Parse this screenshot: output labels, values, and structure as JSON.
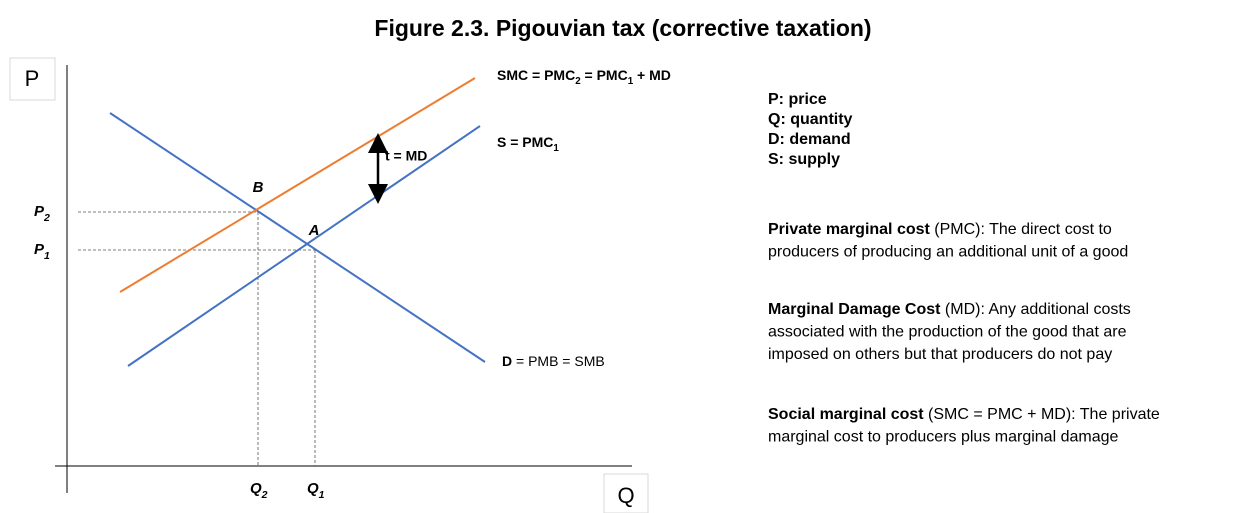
{
  "title": "Figure 2.3. Pigouvian tax (corrective taxation)",
  "axes": {
    "y_label": "P",
    "x_label": "Q"
  },
  "curves": {
    "smc": [
      "SMC = PMC",
      "2",
      " = PMC",
      "1",
      " + MD"
    ],
    "s": [
      "S = PMC",
      "1"
    ],
    "d": [
      "D",
      " = PMB = SMB"
    ]
  },
  "points": {
    "b": "B",
    "a": "A"
  },
  "prices": [
    [
      "P",
      "2"
    ],
    [
      "P",
      "1"
    ]
  ],
  "quantities": [
    [
      "Q",
      "2"
    ],
    [
      "Q",
      "1"
    ]
  ],
  "tax": "t = MD",
  "definitions": [
    "P: price",
    "Q: quantity",
    "D: demand",
    "S: supply"
  ],
  "notes": [
    {
      "term": "Private marginal cost",
      "lines": [
        " (PMC): The direct cost to",
        "producers of producing an additional unit of a good"
      ]
    },
    {
      "term": "Marginal Damage Cost",
      "lines": [
        " (MD): Any additional costs",
        "associated with the production of the good that are",
        "imposed on others but that producers do not pay"
      ]
    },
    {
      "term": "Social marginal cost",
      "lines": [
        " (SMC = PMC + MD): The private",
        "marginal cost to producers plus marginal damage"
      ]
    }
  ]
}
